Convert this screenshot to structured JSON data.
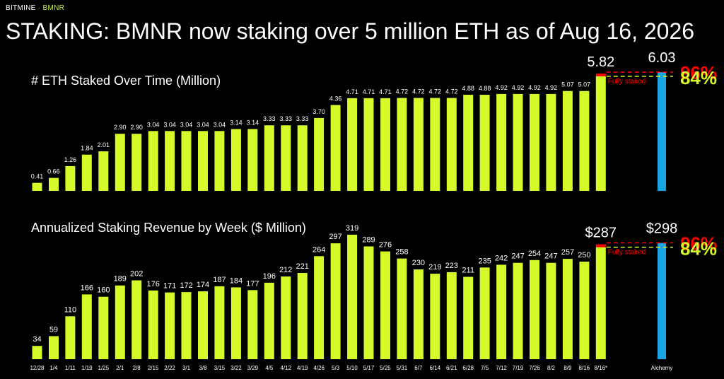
{
  "header": {
    "brand": "BITMINE",
    "brand_sep": "·",
    "ticker": "BMNR",
    "headline": "STAKING: BMNR now staking over 5 million ETH as of Aug 16, 2026"
  },
  "colors": {
    "bar": "#d4fa2a",
    "alchemy": "#1aa5e0",
    "full_red": "#ff0000",
    "pct84": "#d4fa2a",
    "bg": "#000000"
  },
  "chart_data": [
    {
      "type": "bar",
      "title": "# ETH Staked Over Time (Million)",
      "categories": [
        "12/28",
        "1/4",
        "1/11",
        "1/19",
        "1/25",
        "2/1",
        "2/8",
        "2/15",
        "2/22",
        "3/1",
        "3/8",
        "3/15",
        "3/22",
        "3/29",
        "4/5",
        "4/12",
        "4/19",
        "4/26",
        "5/3",
        "5/10",
        "5/17",
        "5/25",
        "5/31",
        "6/7",
        "6/14",
        "6/21",
        "6/28",
        "7/5",
        "7/12",
        "7/19",
        "7/26",
        "8/2",
        "8/9",
        "8/16",
        "8/16*"
      ],
      "values": [
        0.41,
        0.66,
        1.26,
        1.84,
        2.01,
        2.9,
        2.9,
        3.04,
        3.04,
        3.04,
        3.04,
        3.04,
        3.14,
        3.14,
        3.33,
        3.33,
        3.33,
        3.7,
        4.36,
        4.71,
        4.71,
        4.71,
        4.72,
        4.72,
        4.72,
        4.72,
        4.88,
        4.88,
        4.92,
        4.92,
        4.92,
        4.92,
        5.07,
        5.07,
        5.82
      ],
      "value_labels": [
        "0.41",
        "0.66",
        "1.26",
        "1.84",
        "2.01",
        "2.90",
        "2.90",
        "3.04",
        "3.04",
        "3.04",
        "3.04",
        "3.04",
        "3.14",
        "3.14",
        "3.33",
        "3.33",
        "3.33",
        "3.70",
        "4.36",
        "4.71",
        "4.71",
        "4.71",
        "4.72",
        "4.72",
        "4.72",
        "4.72",
        "4.88",
        "4.88",
        "4.92",
        "4.92",
        "4.92",
        "4.92",
        "5.07",
        "5.07",
        "5.82"
      ],
      "fully_staked_value": 6.03,
      "alchemy": {
        "label": "Alchemy",
        "value": 6.03,
        "value_label": "6.03"
      },
      "fully_staked_label": "Fully staked",
      "pct_high": "96%",
      "pct_low": "84%"
    },
    {
      "type": "bar",
      "title": "Annualized Staking Revenue by Week ($ Million)",
      "categories": [
        "12/28",
        "1/4",
        "1/11",
        "1/19",
        "1/25",
        "2/1",
        "2/8",
        "2/15",
        "2/22",
        "3/1",
        "3/8",
        "3/15",
        "3/22",
        "3/29",
        "4/5",
        "4/12",
        "4/19",
        "4/26",
        "5/3",
        "5/10",
        "5/17",
        "5/25",
        "5/31",
        "6/7",
        "6/14",
        "6/21",
        "6/28",
        "7/5",
        "7/12",
        "7/19",
        "7/26",
        "8/2",
        "8/9",
        "8/16",
        "8/16*"
      ],
      "values": [
        34,
        59,
        110,
        166,
        160,
        189,
        202,
        176,
        171,
        172,
        174,
        187,
        184,
        177,
        196,
        212,
        221,
        264,
        297,
        319,
        289,
        276,
        258,
        230,
        219,
        223,
        211,
        235,
        242,
        247,
        254,
        247,
        257,
        250,
        287
      ],
      "value_labels": [
        "34",
        "59",
        "110",
        "166",
        "160",
        "189",
        "202",
        "176",
        "171",
        "172",
        "174",
        "187",
        "184",
        "177",
        "196",
        "212",
        "221",
        "264",
        "297",
        "319",
        "289",
        "276",
        "258",
        "230",
        "219",
        "223",
        "211",
        "235",
        "242",
        "247",
        "254",
        "247",
        "257",
        "250",
        "$287"
      ],
      "fully_staked_value": 298,
      "alchemy": {
        "label": "Alchemy",
        "value": 298,
        "value_label": "$298"
      },
      "fully_staked_label": "Fully staked",
      "pct_high": "96%",
      "pct_low": "84%"
    }
  ]
}
